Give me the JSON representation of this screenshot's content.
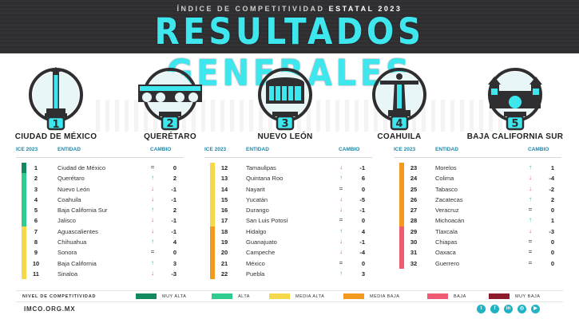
{
  "header": {
    "supertitle_a": "ÍNDICE DE COMPETITIVIDAD",
    "supertitle_b": "ESTATAL 2023",
    "title": "RESULTADOS GENERALES"
  },
  "podium": [
    {
      "rank": "1",
      "state": "CIUDAD DE MÉXICO",
      "icon": "angel-independence-icon"
    },
    {
      "rank": "2",
      "state": "QUERÉTARO",
      "icon": "aqueduct-icon"
    },
    {
      "rank": "3",
      "state": "NUEVO LEÓN",
      "icon": "building-icon"
    },
    {
      "rank": "4",
      "state": "COAHUILA",
      "icon": "statue-icon"
    },
    {
      "rank": "5",
      "state": "BAJA CALIFORNIA SUR",
      "icon": "mission-church-icon"
    }
  ],
  "table_headers": {
    "ice": "ICE 2023",
    "entidad": "ENTIDAD",
    "cambio": "CAMBIO"
  },
  "levels": {
    "muy_alta": "#138a5e",
    "alta": "#2ecc8e",
    "media_alta": "#f5d94a",
    "media_baja": "#f39a1e",
    "baja": "#ee5b73",
    "muy_baja": "#8e1a2e"
  },
  "columns": [
    [
      {
        "rank": "1",
        "name": "Ciudad de México",
        "dir": "eq",
        "change": "0",
        "level": "muy_alta"
      },
      {
        "rank": "2",
        "name": "Querétaro",
        "dir": "up",
        "change": "2",
        "level": "alta"
      },
      {
        "rank": "3",
        "name": "Nuevo León",
        "dir": "down",
        "change": "-1",
        "level": "alta"
      },
      {
        "rank": "4",
        "name": "Coahuila",
        "dir": "down",
        "change": "-1",
        "level": "alta"
      },
      {
        "rank": "5",
        "name": "Baja California Sur",
        "dir": "up",
        "change": "2",
        "level": "alta"
      },
      {
        "rank": "6",
        "name": "Jalisco",
        "dir": "down",
        "change": "-1",
        "level": "alta"
      },
      {
        "rank": "7",
        "name": "Aguascalientes",
        "dir": "down",
        "change": "-1",
        "level": "media_alta"
      },
      {
        "rank": "8",
        "name": "Chihuahua",
        "dir": "up",
        "change": "4",
        "level": "media_alta"
      },
      {
        "rank": "9",
        "name": "Sonora",
        "dir": "eq",
        "change": "0",
        "level": "media_alta"
      },
      {
        "rank": "10",
        "name": "Baja California",
        "dir": "up",
        "change": "3",
        "level": "media_alta"
      },
      {
        "rank": "11",
        "name": "Sinaloa",
        "dir": "down",
        "change": "-3",
        "level": "media_alta"
      }
    ],
    [
      {
        "rank": "12",
        "name": "Tamaulipas",
        "dir": "down",
        "change": "-1",
        "level": "media_alta"
      },
      {
        "rank": "13",
        "name": "Quintana Roo",
        "dir": "up",
        "change": "6",
        "level": "media_alta"
      },
      {
        "rank": "14",
        "name": "Nayarit",
        "dir": "eq",
        "change": "0",
        "level": "media_alta"
      },
      {
        "rank": "15",
        "name": "Yucatán",
        "dir": "down",
        "change": "-5",
        "level": "media_alta"
      },
      {
        "rank": "16",
        "name": "Durango",
        "dir": "down",
        "change": "-1",
        "level": "media_alta"
      },
      {
        "rank": "17",
        "name": "San Luis Potosí",
        "dir": "eq",
        "change": "0",
        "level": "media_alta"
      },
      {
        "rank": "18",
        "name": "Hidalgo",
        "dir": "up",
        "change": "4",
        "level": "media_baja"
      },
      {
        "rank": "19",
        "name": "Guanajuato",
        "dir": "down",
        "change": "-1",
        "level": "media_baja"
      },
      {
        "rank": "20",
        "name": "Campeche",
        "dir": "down",
        "change": "-4",
        "level": "media_baja"
      },
      {
        "rank": "21",
        "name": "México",
        "dir": "eq",
        "change": "0",
        "level": "media_baja"
      },
      {
        "rank": "22",
        "name": "Puebla",
        "dir": "up",
        "change": "3",
        "level": "media_baja"
      }
    ],
    [
      {
        "rank": "23",
        "name": "Morelos",
        "dir": "up",
        "change": "1",
        "level": "media_baja"
      },
      {
        "rank": "24",
        "name": "Colima",
        "dir": "down",
        "change": "-4",
        "level": "media_baja"
      },
      {
        "rank": "25",
        "name": "Tabasco",
        "dir": "down",
        "change": "-2",
        "level": "media_baja"
      },
      {
        "rank": "26",
        "name": "Zacatecas",
        "dir": "up",
        "change": "2",
        "level": "media_baja"
      },
      {
        "rank": "27",
        "name": "Veracruz",
        "dir": "eq",
        "change": "0",
        "level": "media_baja"
      },
      {
        "rank": "28",
        "name": "Michoacán",
        "dir": "up",
        "change": "1",
        "level": "media_baja"
      },
      {
        "rank": "29",
        "name": "Tlaxcala",
        "dir": "down",
        "change": "-3",
        "level": "baja"
      },
      {
        "rank": "30",
        "name": "Chiapas",
        "dir": "eq",
        "change": "0",
        "level": "baja"
      },
      {
        "rank": "31",
        "name": "Oaxaca",
        "dir": "eq",
        "change": "0",
        "level": "baja"
      },
      {
        "rank": "32",
        "name": "Guerrero",
        "dir": "eq",
        "change": "0",
        "level": "baja"
      }
    ]
  ],
  "legend": {
    "title": "NIVEL DE COMPETITIVIDAD",
    "items": [
      {
        "key": "muy_alta",
        "label": "MUY ALTA"
      },
      {
        "key": "alta",
        "label": "ALTA"
      },
      {
        "key": "media_alta",
        "label": "MEDIA ALTA"
      },
      {
        "key": "media_baja",
        "label": "MEDIA BAJA"
      },
      {
        "key": "baja",
        "label": "BAJA"
      },
      {
        "key": "muy_baja",
        "label": "MUY BAJA"
      }
    ]
  },
  "footer": {
    "site": "IMCO.ORG.MX",
    "social": [
      {
        "icon": "twitter-icon",
        "glyph": "t"
      },
      {
        "icon": "facebook-icon",
        "glyph": "f"
      },
      {
        "icon": "linkedin-icon",
        "glyph": "in"
      },
      {
        "icon": "instagram-icon",
        "glyph": "◎"
      },
      {
        "icon": "youtube-icon",
        "glyph": "▶"
      }
    ]
  }
}
